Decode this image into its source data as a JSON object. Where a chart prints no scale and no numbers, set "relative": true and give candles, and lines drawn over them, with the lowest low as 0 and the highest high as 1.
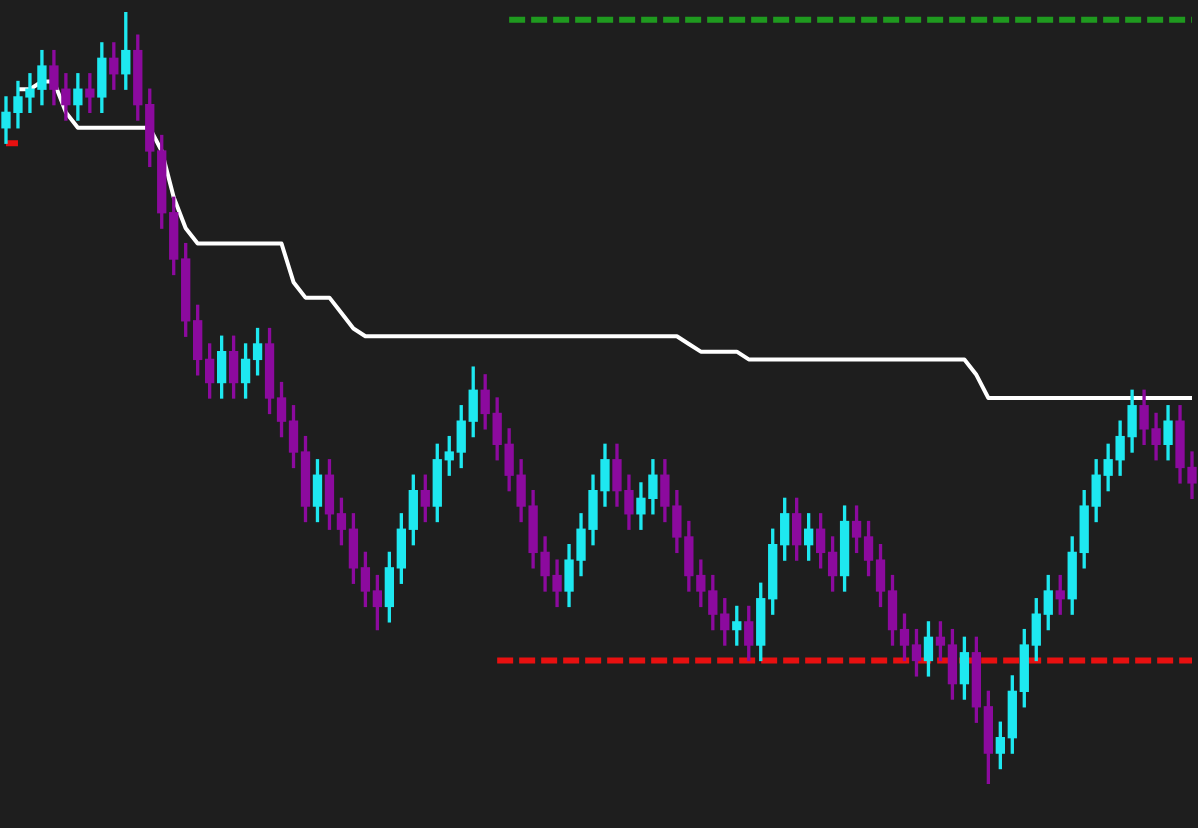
{
  "chart_data": {
    "type": "candlestick",
    "relative": true,
    "categories": [
      null,
      null,
      null,
      null,
      null,
      null,
      null,
      null,
      null,
      null,
      null,
      null,
      null,
      null,
      null,
      null,
      null,
      null,
      null,
      null,
      null,
      null,
      null,
      null,
      null,
      null,
      null,
      null,
      null,
      null,
      null,
      null,
      null,
      null,
      null,
      null,
      null,
      null,
      null,
      null,
      null,
      null,
      null,
      null,
      null,
      null,
      null,
      null,
      null,
      null,
      null,
      null,
      null,
      null,
      null,
      null,
      null,
      null,
      null,
      null,
      null,
      null,
      null,
      null,
      null,
      null,
      null,
      null,
      null,
      null,
      null,
      null,
      null,
      null,
      null,
      null,
      null,
      null,
      null,
      null,
      null,
      null,
      null,
      null,
      null,
      null,
      null,
      null,
      null,
      null,
      null,
      null,
      null,
      null,
      null,
      null,
      null,
      null,
      null,
      null
    ],
    "ohlc": [
      [
        0.85,
        0.89,
        0.83,
        0.87
      ],
      [
        0.87,
        0.91,
        0.85,
        0.89
      ],
      [
        0.89,
        0.92,
        0.87,
        0.9
      ],
      [
        0.9,
        0.95,
        0.88,
        0.93
      ],
      [
        0.93,
        0.95,
        0.88,
        0.9
      ],
      [
        0.9,
        0.92,
        0.86,
        0.88
      ],
      [
        0.88,
        0.92,
        0.86,
        0.9
      ],
      [
        0.9,
        0.92,
        0.87,
        0.89
      ],
      [
        0.89,
        0.96,
        0.87,
        0.94
      ],
      [
        0.94,
        0.96,
        0.9,
        0.92
      ],
      [
        0.92,
        1.0,
        0.9,
        0.95
      ],
      [
        0.95,
        0.97,
        0.86,
        0.88
      ],
      [
        0.88,
        0.9,
        0.8,
        0.82
      ],
      [
        0.82,
        0.84,
        0.72,
        0.74
      ],
      [
        0.74,
        0.76,
        0.66,
        0.68
      ],
      [
        0.68,
        0.7,
        0.58,
        0.6
      ],
      [
        0.6,
        0.62,
        0.53,
        0.55
      ],
      [
        0.55,
        0.57,
        0.5,
        0.52
      ],
      [
        0.52,
        0.58,
        0.5,
        0.56
      ],
      [
        0.56,
        0.58,
        0.5,
        0.52
      ],
      [
        0.52,
        0.57,
        0.5,
        0.55
      ],
      [
        0.55,
        0.59,
        0.53,
        0.57
      ],
      [
        0.57,
        0.59,
        0.48,
        0.5
      ],
      [
        0.5,
        0.52,
        0.45,
        0.47
      ],
      [
        0.47,
        0.49,
        0.41,
        0.43
      ],
      [
        0.43,
        0.45,
        0.34,
        0.36
      ],
      [
        0.36,
        0.42,
        0.34,
        0.4
      ],
      [
        0.4,
        0.42,
        0.33,
        0.35
      ],
      [
        0.35,
        0.37,
        0.31,
        0.33
      ],
      [
        0.33,
        0.35,
        0.26,
        0.28
      ],
      [
        0.28,
        0.3,
        0.23,
        0.25
      ],
      [
        0.25,
        0.27,
        0.2,
        0.23
      ],
      [
        0.23,
        0.3,
        0.21,
        0.28
      ],
      [
        0.28,
        0.35,
        0.26,
        0.33
      ],
      [
        0.33,
        0.4,
        0.31,
        0.38
      ],
      [
        0.38,
        0.4,
        0.34,
        0.36
      ],
      [
        0.36,
        0.44,
        0.34,
        0.42
      ],
      [
        0.42,
        0.45,
        0.4,
        0.43
      ],
      [
        0.43,
        0.49,
        0.41,
        0.47
      ],
      [
        0.47,
        0.54,
        0.45,
        0.51
      ],
      [
        0.51,
        0.53,
        0.46,
        0.48
      ],
      [
        0.48,
        0.5,
        0.42,
        0.44
      ],
      [
        0.44,
        0.46,
        0.38,
        0.4
      ],
      [
        0.4,
        0.42,
        0.34,
        0.36
      ],
      [
        0.36,
        0.38,
        0.28,
        0.3
      ],
      [
        0.3,
        0.32,
        0.25,
        0.27
      ],
      [
        0.27,
        0.29,
        0.23,
        0.25
      ],
      [
        0.25,
        0.31,
        0.23,
        0.29
      ],
      [
        0.29,
        0.35,
        0.27,
        0.33
      ],
      [
        0.33,
        0.4,
        0.31,
        0.38
      ],
      [
        0.38,
        0.44,
        0.36,
        0.42
      ],
      [
        0.42,
        0.44,
        0.36,
        0.38
      ],
      [
        0.38,
        0.4,
        0.33,
        0.35
      ],
      [
        0.35,
        0.39,
        0.33,
        0.37
      ],
      [
        0.37,
        0.42,
        0.35,
        0.4
      ],
      [
        0.4,
        0.42,
        0.34,
        0.36
      ],
      [
        0.36,
        0.38,
        0.3,
        0.32
      ],
      [
        0.32,
        0.34,
        0.25,
        0.27
      ],
      [
        0.27,
        0.29,
        0.23,
        0.25
      ],
      [
        0.25,
        0.27,
        0.2,
        0.22
      ],
      [
        0.22,
        0.24,
        0.18,
        0.2
      ],
      [
        0.2,
        0.23,
        0.18,
        0.21
      ],
      [
        0.21,
        0.23,
        0.16,
        0.18
      ],
      [
        0.18,
        0.26,
        0.16,
        0.24
      ],
      [
        0.24,
        0.33,
        0.22,
        0.31
      ],
      [
        0.31,
        0.37,
        0.29,
        0.35
      ],
      [
        0.35,
        0.37,
        0.29,
        0.31
      ],
      [
        0.31,
        0.35,
        0.29,
        0.33
      ],
      [
        0.33,
        0.35,
        0.28,
        0.3
      ],
      [
        0.3,
        0.32,
        0.25,
        0.27
      ],
      [
        0.27,
        0.36,
        0.25,
        0.34
      ],
      [
        0.34,
        0.36,
        0.3,
        0.32
      ],
      [
        0.32,
        0.34,
        0.27,
        0.29
      ],
      [
        0.29,
        0.31,
        0.23,
        0.25
      ],
      [
        0.25,
        0.27,
        0.18,
        0.2
      ],
      [
        0.2,
        0.22,
        0.16,
        0.18
      ],
      [
        0.18,
        0.2,
        0.14,
        0.16
      ],
      [
        0.16,
        0.21,
        0.14,
        0.19
      ],
      [
        0.19,
        0.21,
        0.16,
        0.18
      ],
      [
        0.18,
        0.2,
        0.11,
        0.13
      ],
      [
        0.13,
        0.19,
        0.11,
        0.17
      ],
      [
        0.17,
        0.19,
        0.08,
        0.1
      ],
      [
        0.1,
        0.12,
        0.0,
        0.04
      ],
      [
        0.04,
        0.08,
        0.02,
        0.06
      ],
      [
        0.06,
        0.14,
        0.04,
        0.12
      ],
      [
        0.12,
        0.2,
        0.1,
        0.18
      ],
      [
        0.18,
        0.24,
        0.16,
        0.22
      ],
      [
        0.22,
        0.27,
        0.2,
        0.25
      ],
      [
        0.25,
        0.27,
        0.22,
        0.24
      ],
      [
        0.24,
        0.32,
        0.22,
        0.3
      ],
      [
        0.3,
        0.38,
        0.28,
        0.36
      ],
      [
        0.36,
        0.42,
        0.34,
        0.4
      ],
      [
        0.4,
        0.44,
        0.38,
        0.42
      ],
      [
        0.42,
        0.47,
        0.4,
        0.45
      ],
      [
        0.45,
        0.51,
        0.43,
        0.49
      ],
      [
        0.49,
        0.51,
        0.44,
        0.46
      ],
      [
        0.46,
        0.48,
        0.42,
        0.44
      ],
      [
        0.44,
        0.49,
        0.42,
        0.47
      ],
      [
        0.47,
        0.49,
        0.39,
        0.41
      ],
      [
        0.41,
        0.43,
        0.37,
        0.39
      ]
    ],
    "colors": [
      "#1ee8f0",
      "#1ee8f0",
      "#1ee8f0",
      "#1ee8f0",
      "#8c0a9e",
      "#8c0a9e",
      "#1ee8f0",
      "#8c0a9e",
      "#1ee8f0",
      "#8c0a9e",
      "#1ee8f0",
      "#8c0a9e",
      "#8c0a9e",
      "#8c0a9e",
      "#8c0a9e",
      "#8c0a9e",
      "#8c0a9e",
      "#8c0a9e",
      "#1ee8f0",
      "#8c0a9e",
      "#1ee8f0",
      "#1ee8f0",
      "#8c0a9e",
      "#8c0a9e",
      "#8c0a9e",
      "#8c0a9e",
      "#1ee8f0",
      "#8c0a9e",
      "#8c0a9e",
      "#8c0a9e",
      "#8c0a9e",
      "#8c0a9e",
      "#1ee8f0",
      "#1ee8f0",
      "#1ee8f0",
      "#8c0a9e",
      "#1ee8f0",
      "#1ee8f0",
      "#1ee8f0",
      "#1ee8f0",
      "#8c0a9e",
      "#8c0a9e",
      "#8c0a9e",
      "#8c0a9e",
      "#8c0a9e",
      "#8c0a9e",
      "#8c0a9e",
      "#1ee8f0",
      "#1ee8f0",
      "#1ee8f0",
      "#1ee8f0",
      "#8c0a9e",
      "#8c0a9e",
      "#1ee8f0",
      "#1ee8f0",
      "#8c0a9e",
      "#8c0a9e",
      "#8c0a9e",
      "#8c0a9e",
      "#8c0a9e",
      "#8c0a9e",
      "#1ee8f0",
      "#8c0a9e",
      "#1ee8f0",
      "#1ee8f0",
      "#1ee8f0",
      "#8c0a9e",
      "#1ee8f0",
      "#8c0a9e",
      "#8c0a9e",
      "#1ee8f0",
      "#8c0a9e",
      "#8c0a9e",
      "#8c0a9e",
      "#8c0a9e",
      "#8c0a9e",
      "#8c0a9e",
      "#1ee8f0",
      "#8c0a9e",
      "#8c0a9e",
      "#1ee8f0",
      "#8c0a9e",
      "#8c0a9e",
      "#1ee8f0",
      "#1ee8f0",
      "#1ee8f0",
      "#1ee8f0",
      "#1ee8f0",
      "#8c0a9e",
      "#1ee8f0",
      "#1ee8f0",
      "#1ee8f0",
      "#1ee8f0",
      "#1ee8f0",
      "#1ee8f0",
      "#8c0a9e",
      "#8c0a9e",
      "#1ee8f0",
      "#8c0a9e",
      "#8c0a9e"
    ],
    "series": [
      {
        "type": "line",
        "color": "#ffffff",
        "line_style": "solid",
        "values": [
          null,
          0.9,
          0.9,
          0.91,
          0.91,
          0.87,
          0.85,
          0.85,
          0.85,
          0.85,
          0.85,
          0.85,
          0.85,
          0.82,
          0.76,
          0.72,
          0.7,
          0.7,
          0.7,
          0.7,
          0.7,
          0.7,
          0.7,
          0.7,
          0.65,
          0.63,
          0.63,
          0.63,
          0.61,
          0.59,
          0.58,
          0.58,
          0.58,
          0.58,
          0.58,
          0.58,
          0.58,
          0.58,
          0.58,
          0.58,
          0.58,
          0.58,
          0.58,
          0.58,
          0.58,
          0.58,
          0.58,
          0.58,
          0.58,
          0.58,
          0.58,
          0.58,
          0.58,
          0.58,
          0.58,
          0.58,
          0.58,
          0.57,
          0.56,
          0.56,
          0.56,
          0.56,
          0.55,
          0.55,
          0.55,
          0.55,
          0.55,
          0.55,
          0.55,
          0.55,
          0.55,
          0.55,
          0.55,
          0.55,
          0.55,
          0.55,
          0.55,
          0.55,
          0.55,
          0.55,
          0.55,
          0.53,
          0.5,
          0.5,
          0.5,
          0.5,
          0.5,
          0.5,
          0.5,
          0.5,
          0.5,
          0.5,
          0.5,
          0.5,
          0.5,
          0.5,
          0.5,
          0.5,
          0.5,
          0.5
        ]
      },
      {
        "type": "line",
        "color": "#e81010",
        "line_style": "dashed",
        "values": [
          0.83,
          0.83,
          null,
          null,
          null,
          null,
          null,
          null,
          null,
          null,
          null,
          null,
          null,
          null,
          null,
          null,
          null,
          null,
          null,
          null,
          null,
          null,
          null,
          null,
          null,
          null,
          null,
          null,
          null,
          null,
          null,
          null,
          null,
          null,
          null,
          null,
          null,
          null,
          null,
          null,
          null,
          null,
          null,
          null,
          null,
          null,
          null,
          null,
          null,
          null,
          null,
          null,
          null,
          null,
          null,
          null,
          null,
          null,
          null,
          null,
          null,
          null,
          null,
          null,
          null,
          null,
          null,
          null,
          null,
          null,
          null,
          null,
          null,
          null,
          null,
          null,
          null,
          null,
          null,
          null,
          null,
          null,
          null,
          null,
          null,
          null,
          null,
          null,
          null,
          null,
          null,
          null,
          null,
          null,
          null,
          null,
          null,
          null,
          null,
          null
        ]
      },
      {
        "type": "line",
        "color": "#e81010",
        "line_style": "dashed",
        "values": [
          null,
          null,
          null,
          null,
          null,
          null,
          null,
          null,
          null,
          null,
          null,
          null,
          null,
          null,
          null,
          null,
          null,
          null,
          null,
          null,
          null,
          null,
          null,
          null,
          null,
          null,
          null,
          null,
          null,
          null,
          null,
          null,
          null,
          null,
          null,
          null,
          null,
          null,
          null,
          null,
          null,
          0.16,
          0.16,
          0.16,
          0.16,
          0.16,
          0.16,
          0.16,
          0.16,
          0.16,
          0.16,
          0.16,
          0.16,
          0.16,
          0.16,
          0.16,
          0.16,
          0.16,
          0.16,
          0.16,
          0.16,
          0.16,
          0.16,
          0.16,
          0.16,
          0.16,
          0.16,
          0.16,
          0.16,
          0.16,
          0.16,
          0.16,
          0.16,
          0.16,
          0.16,
          0.16,
          0.16,
          0.16,
          0.16,
          0.16,
          0.16,
          0.16,
          0.16,
          0.16,
          0.16,
          0.16,
          0.16,
          0.16,
          0.16,
          0.16,
          0.16,
          0.16,
          0.16,
          0.16,
          0.16,
          0.16,
          0.16,
          0.16,
          0.16,
          0.16
        ]
      },
      {
        "type": "line",
        "color": "#1f9a1f",
        "line_style": "dashed",
        "values": [
          null,
          null,
          null,
          null,
          null,
          null,
          null,
          null,
          null,
          null,
          null,
          null,
          null,
          null,
          null,
          null,
          null,
          null,
          null,
          null,
          null,
          null,
          null,
          null,
          null,
          null,
          null,
          null,
          null,
          null,
          null,
          null,
          null,
          null,
          null,
          null,
          null,
          null,
          null,
          null,
          null,
          null,
          0.99,
          0.99,
          0.99,
          0.99,
          0.99,
          0.99,
          0.99,
          0.99,
          0.99,
          0.99,
          0.99,
          0.99,
          0.99,
          0.99,
          0.99,
          0.99,
          0.99,
          0.99,
          0.99,
          0.99,
          0.99,
          0.99,
          0.99,
          0.99,
          0.99,
          0.99,
          0.99,
          0.99,
          0.99,
          0.99,
          0.99,
          0.99,
          0.99,
          0.99,
          0.99,
          0.99,
          0.99,
          0.99,
          0.99,
          0.99,
          0.99,
          0.99,
          0.99,
          0.99,
          0.99,
          0.99,
          0.99,
          0.99,
          0.99,
          0.99,
          0.99,
          0.99,
          0.99,
          0.99,
          0.99,
          0.99,
          0.99,
          0.99
        ]
      }
    ]
  }
}
